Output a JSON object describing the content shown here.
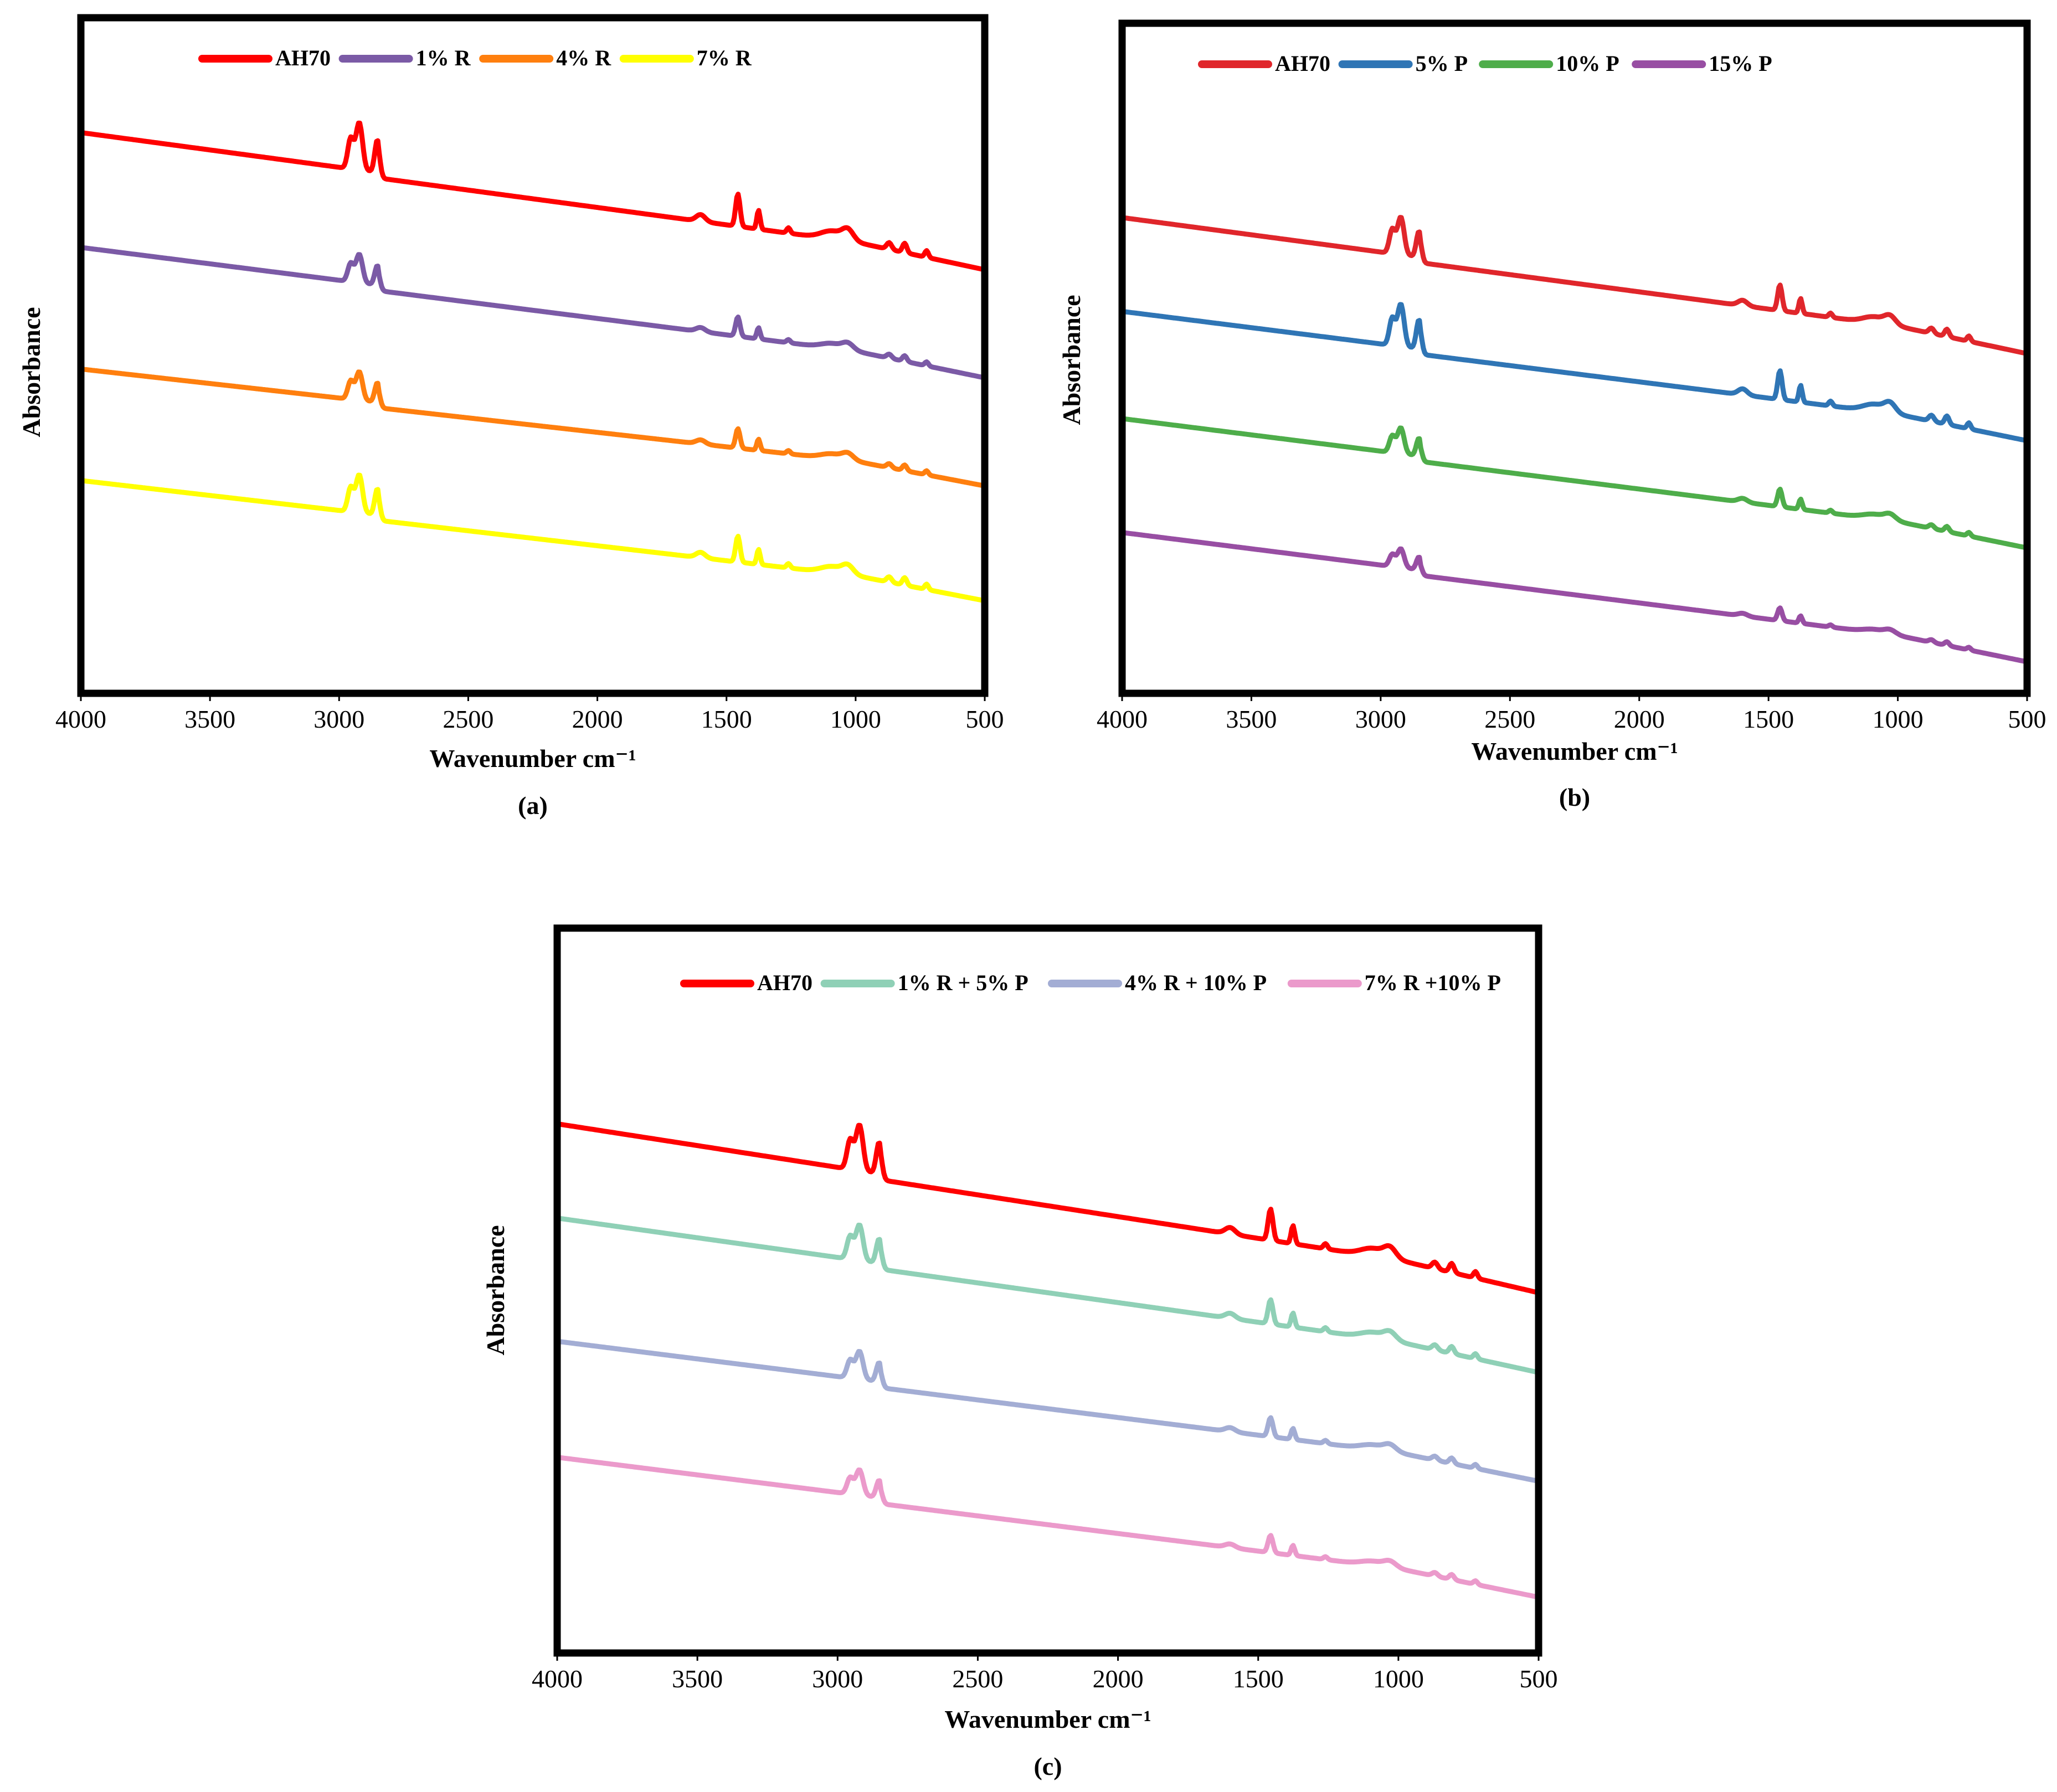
{
  "figure": {
    "description_panels": [
      "a",
      "b",
      "c"
    ]
  },
  "chart_data": [
    {
      "type": "line",
      "panel_label": "(a)",
      "xlabel": "Wavenumber cm⁻¹",
      "ylabel": "Absorbance",
      "xlim": [
        4000,
        500
      ],
      "x_reversed": true,
      "ylim": [
        0,
        100
      ],
      "x_ticks": [
        4000,
        3500,
        3000,
        2500,
        2000,
        1500,
        1000,
        500
      ],
      "y_ticks_shown": false,
      "grid": false,
      "legend_position": "top",
      "series": [
        {
          "name": "AH70",
          "color": "#ff0000",
          "baseline_start": 83.0,
          "baseline_end": 65.0,
          "peak_scale": 1.0
        },
        {
          "name": "1% R",
          "color": "#7b5aa6",
          "baseline_start": 66.0,
          "baseline_end": 49.0,
          "peak_scale": 0.6
        },
        {
          "name": "4% R",
          "color": "#ff7f0e",
          "baseline_start": 48.0,
          "baseline_end": 33.0,
          "peak_scale": 0.6
        },
        {
          "name": "7% R",
          "color": "#ffff00",
          "baseline_start": 31.5,
          "baseline_end": 16.0,
          "peak_scale": 0.8
        }
      ]
    },
    {
      "type": "line",
      "panel_label": "(b)",
      "xlabel": "Wavenumber cm⁻¹",
      "ylabel": "Absorbance",
      "xlim": [
        4000,
        500
      ],
      "x_reversed": true,
      "ylim": [
        0,
        100
      ],
      "x_ticks": [
        4000,
        3500,
        3000,
        2500,
        2000,
        1500,
        1000,
        500
      ],
      "y_ticks_shown": false,
      "grid": false,
      "legend_position": "top",
      "series": [
        {
          "name": "AH70",
          "color": "#e0262b",
          "baseline_start": 71.0,
          "baseline_end": 53.0,
          "peak_scale": 0.8
        },
        {
          "name": "5% P",
          "color": "#2f75b5",
          "baseline_start": 57.0,
          "baseline_end": 40.0,
          "peak_scale": 0.9
        },
        {
          "name": "10% P",
          "color": "#4ead4a",
          "baseline_start": 41.0,
          "baseline_end": 24.0,
          "peak_scale": 0.55
        },
        {
          "name": "15% P",
          "color": "#984ea3",
          "baseline_start": 24.0,
          "baseline_end": 7.0,
          "peak_scale": 0.4
        }
      ]
    },
    {
      "type": "line",
      "panel_label": "(c)",
      "xlabel": "Wavenumber cm⁻¹",
      "ylabel": "Absorbance",
      "xlim": [
        4000,
        500
      ],
      "x_reversed": true,
      "ylim": [
        0,
        100
      ],
      "x_ticks": [
        4000,
        3500,
        3000,
        2500,
        2000,
        1500,
        1000,
        500
      ],
      "y_ticks_shown": false,
      "grid": false,
      "legend_position": "top",
      "series": [
        {
          "name": "AH70",
          "color": "#ff0000",
          "baseline_start": 73.0,
          "baseline_end": 52.0,
          "peak_scale": 0.9
        },
        {
          "name": "1% R + 5% P",
          "color": "#8fd0b6",
          "baseline_start": 60.0,
          "baseline_end": 41.0,
          "peak_scale": 0.7
        },
        {
          "name": "4% R + 10% P",
          "color": "#a3add4",
          "baseline_start": 43.0,
          "baseline_end": 26.0,
          "peak_scale": 0.55
        },
        {
          "name": "7% R +10% P",
          "color": "#eb9acb",
          "baseline_start": 27.0,
          "baseline_end": 10.0,
          "peak_scale": 0.5
        }
      ]
    }
  ]
}
